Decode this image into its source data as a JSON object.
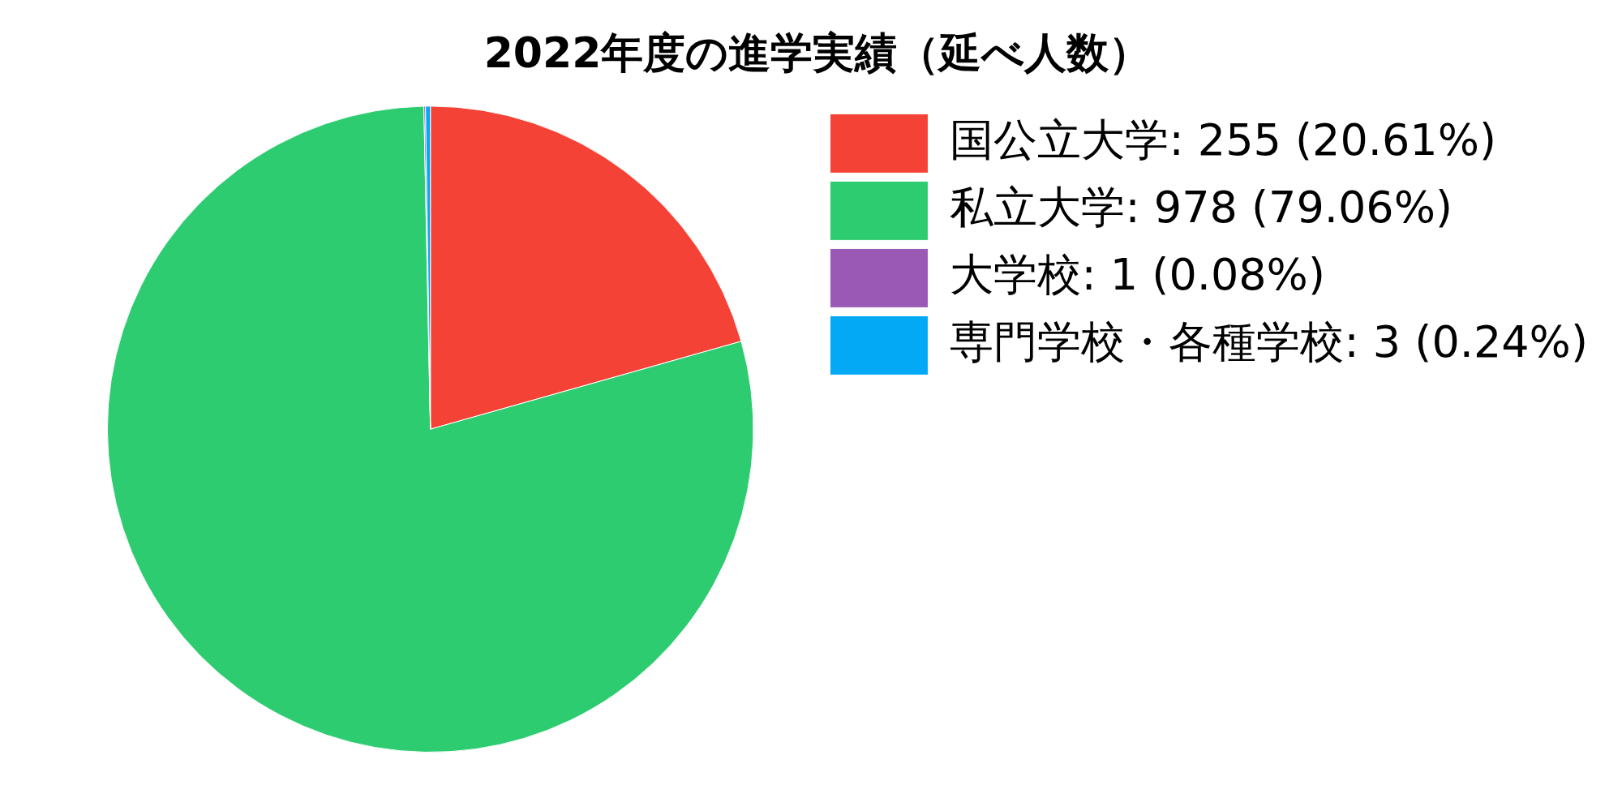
{
  "chart_data": {
    "type": "pie",
    "title": "2022年度の進学実績（延べ人数）",
    "categories": [
      "国公立大学",
      "私立大学",
      "大学校",
      "専門学校・各種学校"
    ],
    "values": [
      255,
      978,
      1,
      3
    ],
    "value_labels": [
      "255 (20.61%)",
      "978 (79.06%)",
      "1 (0.08%)",
      "3 (0.24%)"
    ],
    "colors": [
      "#f44336",
      "#2ecc71",
      "#9b59b6",
      "#03a9f4"
    ],
    "legend": "right"
  }
}
